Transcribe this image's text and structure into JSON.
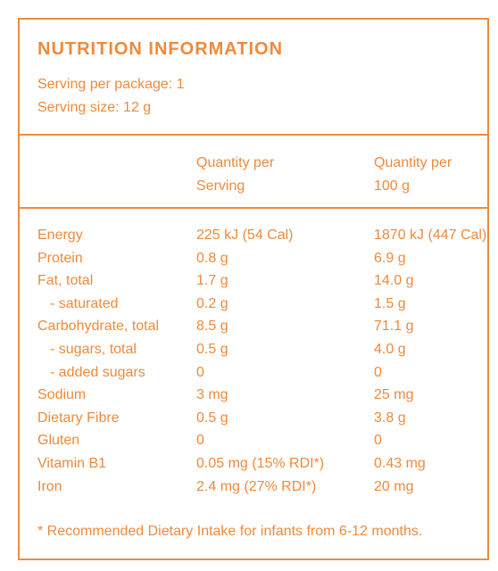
{
  "header": {
    "title": "NUTRITION INFORMATION",
    "servings_per_package": "Serving per package: 1",
    "serving_size": "Serving size: 12 g"
  },
  "table": {
    "columns": [
      [
        "Quantity per",
        "Serving"
      ],
      [
        "Quantity per",
        "100 g"
      ]
    ],
    "rows": [
      [
        "Energy",
        "225 kJ (54 Cal)",
        "1870 kJ (447 Cal)"
      ],
      [
        "Protein",
        "0.8 g",
        "6.9 g"
      ],
      [
        "Fat, total",
        "1.7 g",
        "14.0 g"
      ],
      [
        "- saturated",
        "0.2 g",
        "1.5 g"
      ],
      [
        "Carbohydrate, total",
        "8.5 g",
        "71.1 g"
      ],
      [
        "- sugars, total",
        "0.5 g",
        "4.0 g"
      ],
      [
        "- added sugars",
        "0",
        "0"
      ],
      [
        "Sodium",
        "3 mg",
        "25 mg"
      ],
      [
        "Dietary Fibre",
        "0.5 g",
        "3.8 g"
      ],
      [
        "Gluten",
        "0",
        "0"
      ],
      [
        "Vitamin B1",
        "0.05 mg (15% RDI*)",
        "0.43 mg"
      ],
      [
        "Iron",
        "2.4 mg (27% RDI*)",
        "20 mg"
      ]
    ]
  },
  "footnote": "* Recommended Dietary Intake for infants from 6-12 months."
}
